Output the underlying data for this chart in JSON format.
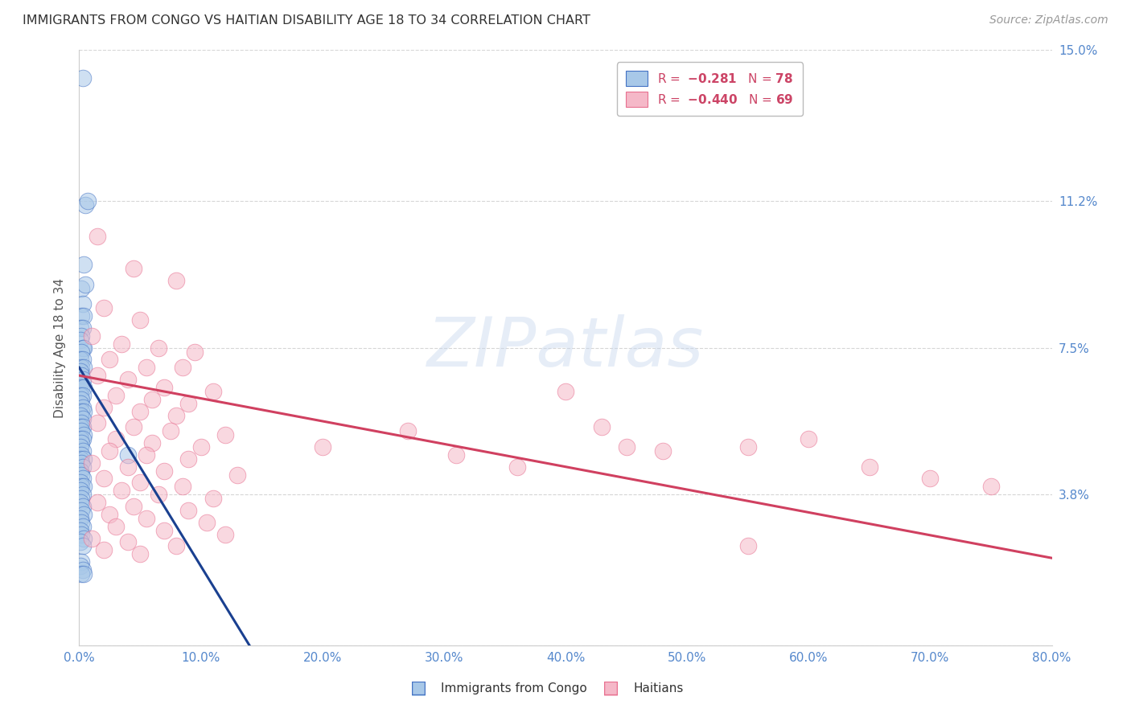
{
  "title": "IMMIGRANTS FROM CONGO VS HAITIAN DISABILITY AGE 18 TO 34 CORRELATION CHART",
  "source": "Source: ZipAtlas.com",
  "ylabel_ticks_vals": [
    0,
    3.8,
    7.5,
    11.2,
    15.0
  ],
  "xlabel_ticks_vals": [
    0,
    10,
    20,
    30,
    40,
    50,
    60,
    70,
    80
  ],
  "xlim": [
    0,
    80
  ],
  "ylim": [
    0,
    15.0
  ],
  "ylabel": "Disability Age 18 to 34",
  "watermark": "ZIPatlas",
  "congo_color": "#a8c8e8",
  "haitian_color": "#f5b8c8",
  "congo_edge_color": "#4472c4",
  "haitian_edge_color": "#e87090",
  "congo_line_color": "#1a4090",
  "haitian_line_color": "#d04060",
  "congo_scatter": [
    [
      0.3,
      14.3
    ],
    [
      0.5,
      11.1
    ],
    [
      0.7,
      11.2
    ],
    [
      0.4,
      9.6
    ],
    [
      0.2,
      9.0
    ],
    [
      0.5,
      9.1
    ],
    [
      0.3,
      8.6
    ],
    [
      0.2,
      8.3
    ],
    [
      0.4,
      8.3
    ],
    [
      0.1,
      8.0
    ],
    [
      0.3,
      8.0
    ],
    [
      0.2,
      7.8
    ],
    [
      0.1,
      7.7
    ],
    [
      0.3,
      7.5
    ],
    [
      0.4,
      7.5
    ],
    [
      0.2,
      7.4
    ],
    [
      0.1,
      7.2
    ],
    [
      0.3,
      7.2
    ],
    [
      0.2,
      7.0
    ],
    [
      0.4,
      7.0
    ],
    [
      0.1,
      6.9
    ],
    [
      0.2,
      6.8
    ],
    [
      0.3,
      6.7
    ],
    [
      0.1,
      6.6
    ],
    [
      0.2,
      6.5
    ],
    [
      0.4,
      6.5
    ],
    [
      0.1,
      6.3
    ],
    [
      0.3,
      6.3
    ],
    [
      0.2,
      6.2
    ],
    [
      0.1,
      6.1
    ],
    [
      0.3,
      6.0
    ],
    [
      0.2,
      5.9
    ],
    [
      0.4,
      5.9
    ],
    [
      0.1,
      5.8
    ],
    [
      0.3,
      5.7
    ],
    [
      0.2,
      5.6
    ],
    [
      0.1,
      5.5
    ],
    [
      0.3,
      5.5
    ],
    [
      0.2,
      5.4
    ],
    [
      0.4,
      5.3
    ],
    [
      0.1,
      5.2
    ],
    [
      0.3,
      5.2
    ],
    [
      0.2,
      5.1
    ],
    [
      0.1,
      5.0
    ],
    [
      0.3,
      4.9
    ],
    [
      0.2,
      4.8
    ],
    [
      0.1,
      4.7
    ],
    [
      0.4,
      4.7
    ],
    [
      0.2,
      4.6
    ],
    [
      0.3,
      4.5
    ],
    [
      0.1,
      4.4
    ],
    [
      0.2,
      4.3
    ],
    [
      0.3,
      4.2
    ],
    [
      0.1,
      4.1
    ],
    [
      0.2,
      4.0
    ],
    [
      0.4,
      4.0
    ],
    [
      0.1,
      3.9
    ],
    [
      0.3,
      3.8
    ],
    [
      0.2,
      3.7
    ],
    [
      0.1,
      3.6
    ],
    [
      0.3,
      3.5
    ],
    [
      0.2,
      3.4
    ],
    [
      0.4,
      3.3
    ],
    [
      0.1,
      3.2
    ],
    [
      0.2,
      3.1
    ],
    [
      0.3,
      3.0
    ],
    [
      4.0,
      4.8
    ],
    [
      0.1,
      2.9
    ],
    [
      0.2,
      2.8
    ],
    [
      0.4,
      2.7
    ],
    [
      0.1,
      2.6
    ],
    [
      0.3,
      2.5
    ],
    [
      0.2,
      2.1
    ],
    [
      0.1,
      2.0
    ],
    [
      0.3,
      1.9
    ],
    [
      0.2,
      1.8
    ],
    [
      0.4,
      1.8
    ]
  ],
  "haitian_scatter": [
    [
      1.5,
      10.3
    ],
    [
      4.5,
      9.5
    ],
    [
      8.0,
      9.2
    ],
    [
      2.0,
      8.5
    ],
    [
      5.0,
      8.2
    ],
    [
      1.0,
      7.8
    ],
    [
      3.5,
      7.6
    ],
    [
      6.5,
      7.5
    ],
    [
      9.5,
      7.4
    ],
    [
      2.5,
      7.2
    ],
    [
      5.5,
      7.0
    ],
    [
      8.5,
      7.0
    ],
    [
      1.5,
      6.8
    ],
    [
      4.0,
      6.7
    ],
    [
      7.0,
      6.5
    ],
    [
      11.0,
      6.4
    ],
    [
      3.0,
      6.3
    ],
    [
      6.0,
      6.2
    ],
    [
      9.0,
      6.1
    ],
    [
      2.0,
      6.0
    ],
    [
      5.0,
      5.9
    ],
    [
      8.0,
      5.8
    ],
    [
      1.5,
      5.6
    ],
    [
      4.5,
      5.5
    ],
    [
      7.5,
      5.4
    ],
    [
      12.0,
      5.3
    ],
    [
      3.0,
      5.2
    ],
    [
      6.0,
      5.1
    ],
    [
      10.0,
      5.0
    ],
    [
      2.5,
      4.9
    ],
    [
      5.5,
      4.8
    ],
    [
      9.0,
      4.7
    ],
    [
      1.0,
      4.6
    ],
    [
      4.0,
      4.5
    ],
    [
      7.0,
      4.4
    ],
    [
      13.0,
      4.3
    ],
    [
      2.0,
      4.2
    ],
    [
      5.0,
      4.1
    ],
    [
      8.5,
      4.0
    ],
    [
      3.5,
      3.9
    ],
    [
      6.5,
      3.8
    ],
    [
      11.0,
      3.7
    ],
    [
      1.5,
      3.6
    ],
    [
      4.5,
      3.5
    ],
    [
      9.0,
      3.4
    ],
    [
      2.5,
      3.3
    ],
    [
      5.5,
      3.2
    ],
    [
      10.5,
      3.1
    ],
    [
      3.0,
      3.0
    ],
    [
      7.0,
      2.9
    ],
    [
      12.0,
      2.8
    ],
    [
      1.0,
      2.7
    ],
    [
      4.0,
      2.6
    ],
    [
      8.0,
      2.5
    ],
    [
      2.0,
      2.4
    ],
    [
      5.0,
      2.3
    ],
    [
      20.0,
      5.0
    ],
    [
      27.0,
      5.4
    ],
    [
      31.0,
      4.8
    ],
    [
      36.0,
      4.5
    ],
    [
      40.0,
      6.4
    ],
    [
      43.0,
      5.5
    ],
    [
      45.0,
      5.0
    ],
    [
      48.0,
      4.9
    ],
    [
      55.0,
      5.0
    ],
    [
      60.0,
      5.2
    ],
    [
      65.0,
      4.5
    ],
    [
      70.0,
      4.2
    ],
    [
      75.0,
      4.0
    ],
    [
      55.0,
      2.5
    ]
  ],
  "congo_trendline": [
    [
      0.0,
      7.0
    ],
    [
      14.0,
      0.0
    ]
  ],
  "congo_dashline": [
    [
      14.0,
      0.0
    ],
    [
      22.0,
      -4.5
    ]
  ],
  "haitian_trendline": [
    [
      0.0,
      6.8
    ],
    [
      80.0,
      2.2
    ]
  ]
}
